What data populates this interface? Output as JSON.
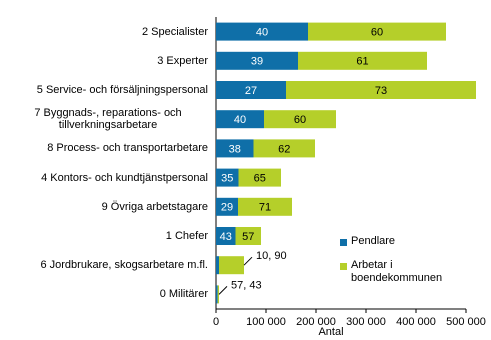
{
  "chart_data": {
    "type": "stacked-bar-horizontal",
    "categories": [
      "2 Specialister",
      "3 Experter",
      "5 Service- och försäljningspersonal",
      "7 Byggnads-, reparations- och tillverkningsarbetare",
      "8 Process- och transportarbetare",
      "4 Kontors- och kundtjänstpersonal",
      "9 Övriga arbetstagare",
      "1 Chefer",
      "6 Jordbrukare, skogsarbetare m.fl.",
      "0 Militärer"
    ],
    "series": [
      {
        "name": "Pendlare",
        "color": "#0f6fa8",
        "values": [
          184000,
          164000,
          140000,
          96000,
          75000,
          45000,
          44000,
          39000,
          6000,
          3400
        ],
        "shares": [
          40,
          39,
          27,
          40,
          38,
          35,
          29,
          43,
          null,
          null
        ]
      },
      {
        "name": "Arbetar i boendekommunen",
        "color": "#b5cf2a",
        "values": [
          276000,
          258000,
          380000,
          144000,
          123000,
          85000,
          108000,
          51000,
          50000,
          2600
        ],
        "shares": [
          60,
          61,
          73,
          60,
          62,
          65,
          71,
          57,
          null,
          null
        ]
      }
    ],
    "outside_labels": [
      null,
      null,
      null,
      null,
      null,
      null,
      null,
      null,
      "10, 90",
      "57, 43"
    ],
    "xlabel": "Antal",
    "xlim": [
      0,
      500000
    ],
    "xticks": [
      0,
      {
        "value": 100000,
        "label": "100 000"
      },
      {
        "value": 200000,
        "label": "200 000"
      },
      {
        "value": 300000,
        "label": "300 000"
      },
      {
        "value": 400000,
        "label": "400 000"
      },
      {
        "value": 500000,
        "label": "500 000"
      }
    ]
  }
}
